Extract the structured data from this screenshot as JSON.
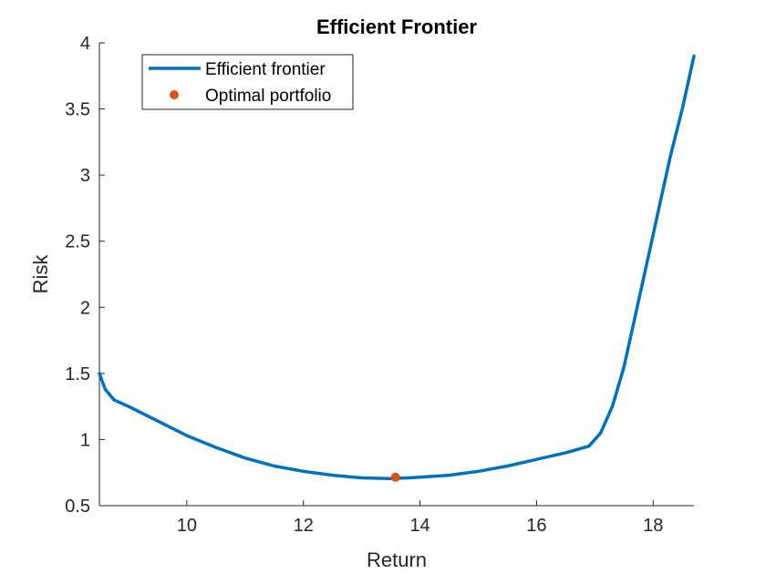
{
  "chart_data": {
    "type": "line",
    "title": "Efficient Frontier",
    "xlabel": "Return",
    "ylabel": "Risk",
    "xlim": [
      8.5,
      18.7
    ],
    "ylim": [
      0.5,
      4
    ],
    "xticks": [
      10,
      12,
      14,
      16,
      18
    ],
    "yticks": [
      0.5,
      1,
      1.5,
      2,
      2.5,
      3,
      3.5,
      4
    ],
    "ytick_labels": [
      "0.5",
      "1",
      "1.5",
      "2",
      "2.5",
      "3",
      "3.5",
      "4"
    ],
    "xtick_labels": [
      "10",
      "12",
      "14",
      "16",
      "18"
    ],
    "grid": false,
    "legend_position": "top-left",
    "series": [
      {
        "name": "Efficient frontier",
        "kind": "line",
        "color": "#0072BD",
        "x": [
          8.5,
          8.6,
          8.75,
          9.0,
          9.5,
          10.0,
          10.5,
          11.0,
          11.5,
          12.0,
          12.5,
          13.0,
          13.5,
          13.8,
          14.0,
          14.5,
          15.0,
          15.5,
          16.0,
          16.5,
          16.9,
          17.1,
          17.3,
          17.5,
          17.7,
          17.9,
          18.1,
          18.3,
          18.5,
          18.7
        ],
        "y": [
          1.5,
          1.38,
          1.3,
          1.25,
          1.14,
          1.03,
          0.94,
          0.86,
          0.8,
          0.76,
          0.73,
          0.71,
          0.705,
          0.71,
          0.715,
          0.73,
          0.76,
          0.8,
          0.85,
          0.9,
          0.95,
          1.05,
          1.25,
          1.55,
          1.95,
          2.35,
          2.75,
          3.15,
          3.5,
          3.9
        ]
      },
      {
        "name": "Optimal portfolio",
        "kind": "marker",
        "color": "#D95319",
        "x": [
          13.58
        ],
        "y": [
          0.715
        ]
      }
    ]
  }
}
